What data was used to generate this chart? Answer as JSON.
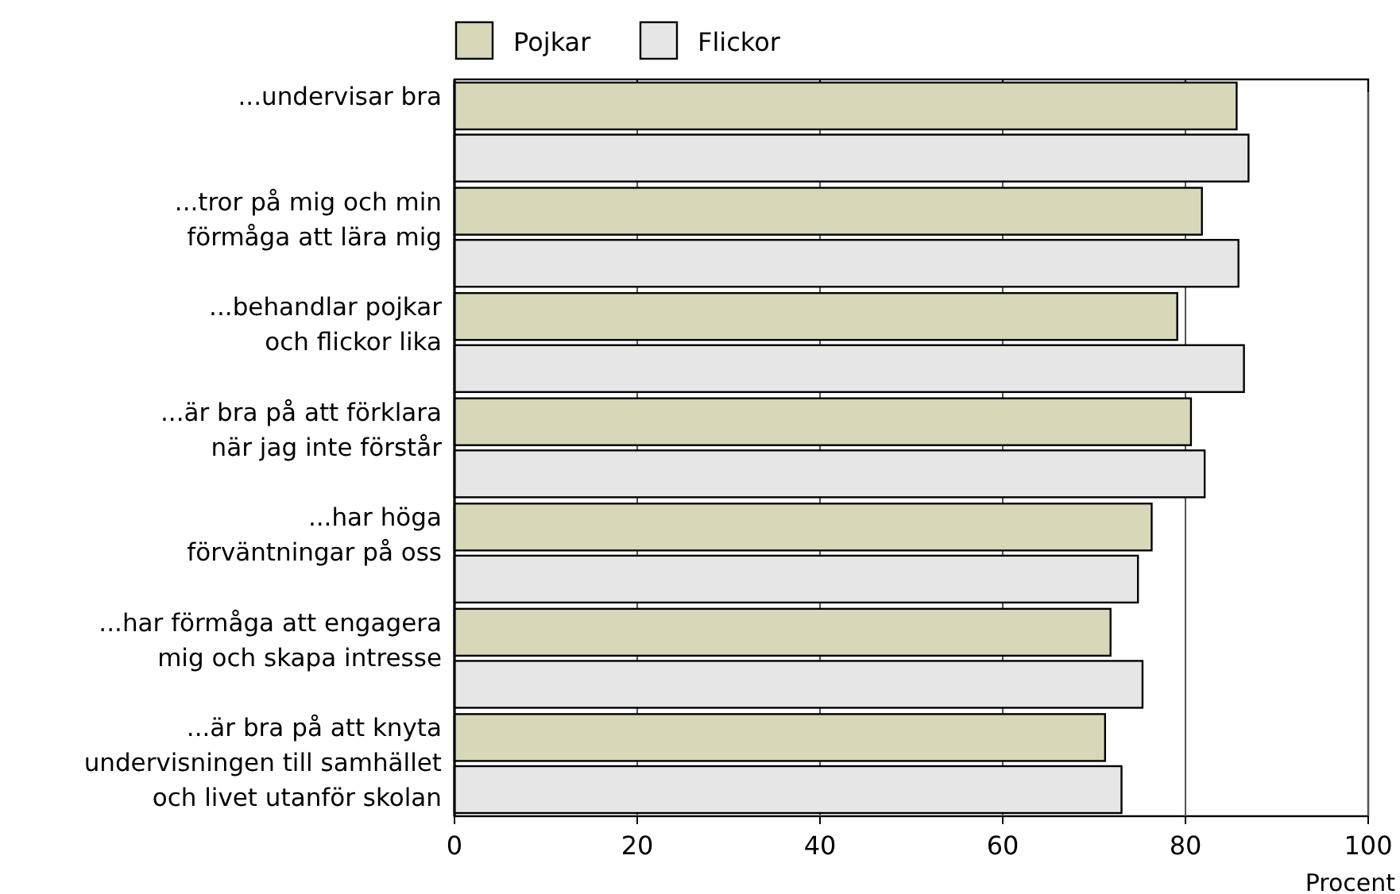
{
  "chart_data": {
    "type": "bar",
    "orientation": "horizontal",
    "xlabel": "Procent",
    "categories": [
      "...undervisar bra",
      "...tror på mig och min\nförmåga att lära mig",
      "...behandlar pojkar\noch flickor lika",
      "...är bra på att förklara\nnär jag inte förstår",
      "...har höga\nförväntningar på oss",
      "...har förmåga att engagera\nmig och skapa intresse",
      "...är bra på att knyta\nundervisningen till samhället\noch livet utanför skolan"
    ],
    "series": [
      {
        "name": "Pojkar",
        "color": "#d8d8b8",
        "values": [
          85.6,
          81.8,
          79.1,
          80.6,
          76.3,
          71.8,
          71.2
        ]
      },
      {
        "name": "Flickor",
        "color": "#e6e6e6",
        "values": [
          86.9,
          85.8,
          86.4,
          82.1,
          74.8,
          75.3,
          73.0
        ]
      }
    ],
    "xlim": [
      0,
      100
    ],
    "xticks": [
      0,
      20,
      40,
      60,
      80,
      100
    ],
    "grid": "x",
    "legend": "top"
  }
}
